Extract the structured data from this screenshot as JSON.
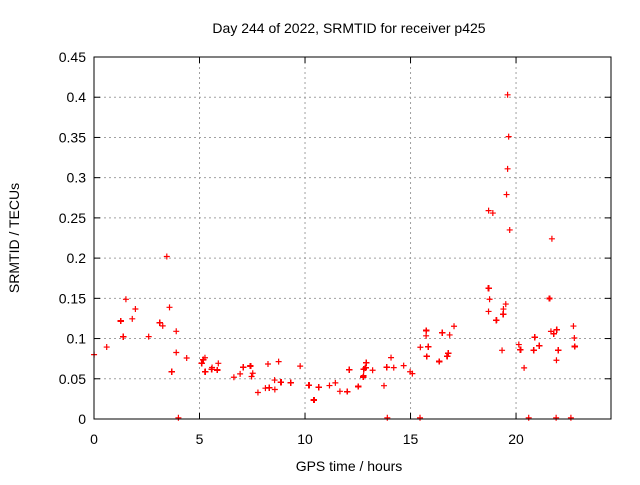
{
  "chart_data": {
    "type": "scatter",
    "title": "Day 244 of 2022, SRMTID for receiver p425",
    "xlabel": "GPS time / hours",
    "ylabel": "SRMTID / TECUs",
    "xlim": [
      0,
      24.5
    ],
    "ylim": [
      0,
      0.45
    ],
    "xticks": [
      0,
      5,
      10,
      15,
      20
    ],
    "yticks": [
      0,
      0.05,
      0.1,
      0.15,
      0.2,
      0.25,
      0.3,
      0.35,
      0.4,
      0.45
    ],
    "xtick_labels": [
      "0",
      "5",
      "10",
      "15",
      "20"
    ],
    "ytick_labels": [
      "0",
      "0.05",
      "0.1",
      "0.15",
      "0.2",
      "0.25",
      "0.3",
      "0.35",
      "0.4",
      "0.45"
    ],
    "grid": true,
    "marker": "+",
    "color": "#ff0000",
    "series": [
      {
        "name": "SRMTID",
        "envelope": [
          {
            "x": 0.0,
            "y_center": 0.075,
            "y_low": 0.045,
            "y_high": 0.12
          },
          {
            "x": 1.0,
            "y_center": 0.11,
            "y_low": 0.06,
            "y_high": 0.17
          },
          {
            "x": 1.5,
            "y_center": 0.13,
            "y_low": 0.07,
            "y_high": 0.19
          },
          {
            "x": 2.5,
            "y_center": 0.1,
            "y_low": 0.05,
            "y_high": 0.18
          },
          {
            "x": 3.5,
            "y_center": 0.11,
            "y_low": 0.05,
            "y_high": 0.2
          },
          {
            "x": 4.5,
            "y_center": 0.075,
            "y_low": 0.03,
            "y_high": 0.14
          },
          {
            "x": 6.0,
            "y_center": 0.06,
            "y_low": 0.03,
            "y_high": 0.12
          },
          {
            "x": 8.0,
            "y_center": 0.05,
            "y_low": 0.02,
            "y_high": 0.1
          },
          {
            "x": 10.0,
            "y_center": 0.04,
            "y_low": 0.015,
            "y_high": 0.09
          },
          {
            "x": 12.0,
            "y_center": 0.04,
            "y_low": 0.015,
            "y_high": 0.09
          },
          {
            "x": 13.5,
            "y_center": 0.055,
            "y_low": 0.02,
            "y_high": 0.11
          },
          {
            "x": 15.0,
            "y_center": 0.05,
            "y_low": 0.02,
            "y_high": 0.1
          },
          {
            "x": 16.0,
            "y_center": 0.1,
            "y_low": 0.05,
            "y_high": 0.16
          },
          {
            "x": 17.0,
            "y_center": 0.09,
            "y_low": 0.045,
            "y_high": 0.18
          },
          {
            "x": 18.0,
            "y_center": 0.1,
            "y_low": 0.05,
            "y_high": 0.15
          },
          {
            "x": 19.0,
            "y_center": 0.12,
            "y_low": 0.06,
            "y_high": 0.26
          },
          {
            "x": 19.8,
            "y_center": 0.13,
            "y_low": 0.06,
            "y_high": 0.24
          },
          {
            "x": 20.5,
            "y_center": 0.07,
            "y_low": 0.02,
            "y_high": 0.12
          },
          {
            "x": 21.5,
            "y_center": 0.09,
            "y_low": 0.04,
            "y_high": 0.22
          },
          {
            "x": 22.8,
            "y_center": 0.08,
            "y_low": 0.03,
            "y_high": 0.15
          }
        ],
        "outliers": [
          {
            "x": 19.6,
            "y": 0.403
          },
          {
            "x": 19.65,
            "y": 0.351
          },
          {
            "x": 19.6,
            "y": 0.311
          },
          {
            "x": 19.55,
            "y": 0.279
          },
          {
            "x": 18.7,
            "y": 0.259
          },
          {
            "x": 18.9,
            "y": 0.256
          },
          {
            "x": 19.7,
            "y": 0.235
          },
          {
            "x": 21.7,
            "y": 0.224
          },
          {
            "x": 3.45,
            "y": 0.202
          }
        ],
        "zero_points": [
          4.0,
          13.9,
          15.45,
          20.6,
          21.9,
          22.6
        ]
      }
    ]
  }
}
